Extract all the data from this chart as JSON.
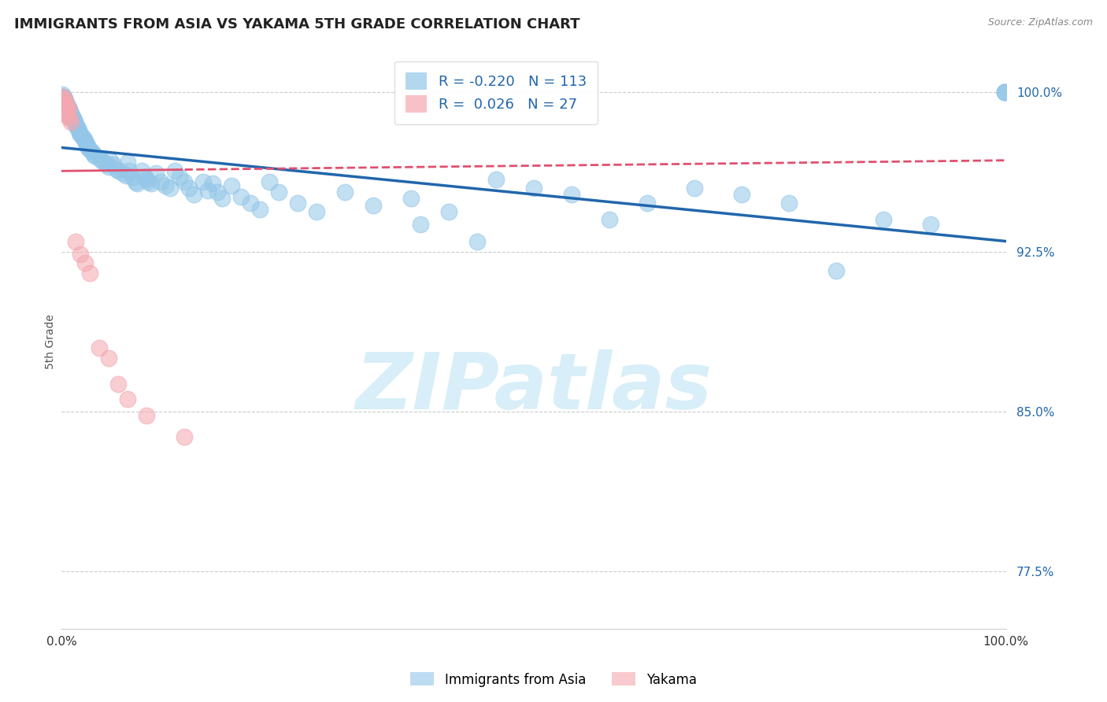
{
  "title": "IMMIGRANTS FROM ASIA VS YAKAMA 5TH GRADE CORRELATION CHART",
  "source_text": "Source: ZipAtlas.com",
  "ylabel": "5th Grade",
  "xlim": [
    0,
    1
  ],
  "ylim": [
    0.748,
    1.018
  ],
  "yticks": [
    0.775,
    0.85,
    0.925,
    1.0
  ],
  "ytick_labels": [
    "77.5%",
    "85.0%",
    "92.5%",
    "100.0%"
  ],
  "legend_blue_R": "-0.220",
  "legend_blue_N": "113",
  "legend_pink_R": "0.026",
  "legend_pink_N": "27",
  "legend_label_blue": "Immigrants from Asia",
  "legend_label_pink": "Yakama",
  "blue_color": "#93c6e8",
  "pink_color": "#f4a7b0",
  "trend_blue_color": "#2166ac",
  "trend_pink_color": "#e05070",
  "background_color": "#ffffff",
  "watermark_text": "ZIPatlas",
  "watermark_color": "#d8eef8",
  "title_fontsize": 13,
  "blue_trend_start_y": 0.974,
  "blue_trend_end_y": 0.93,
  "pink_trend_start_y": 0.963,
  "pink_trend_end_y": 0.968,
  "pink_trend_dashed_start": 0.13,
  "blue_points": [
    [
      0.001,
      0.999
    ],
    [
      0.001,
      0.998
    ],
    [
      0.001,
      0.997
    ],
    [
      0.001,
      0.996
    ],
    [
      0.001,
      0.995
    ],
    [
      0.002,
      0.998
    ],
    [
      0.002,
      0.997
    ],
    [
      0.002,
      0.996
    ],
    [
      0.002,
      0.995
    ],
    [
      0.002,
      0.994
    ],
    [
      0.003,
      0.997
    ],
    [
      0.003,
      0.996
    ],
    [
      0.003,
      0.995
    ],
    [
      0.003,
      0.994
    ],
    [
      0.003,
      0.993
    ],
    [
      0.004,
      0.996
    ],
    [
      0.004,
      0.995
    ],
    [
      0.004,
      0.994
    ],
    [
      0.005,
      0.995
    ],
    [
      0.005,
      0.994
    ],
    [
      0.006,
      0.994
    ],
    [
      0.006,
      0.993
    ],
    [
      0.007,
      0.993
    ],
    [
      0.007,
      0.992
    ],
    [
      0.008,
      0.992
    ],
    [
      0.008,
      0.991
    ],
    [
      0.009,
      0.991
    ],
    [
      0.01,
      0.99
    ],
    [
      0.01,
      0.989
    ],
    [
      0.01,
      0.988
    ],
    [
      0.011,
      0.989
    ],
    [
      0.012,
      0.988
    ],
    [
      0.013,
      0.987
    ],
    [
      0.014,
      0.986
    ],
    [
      0.015,
      0.985
    ],
    [
      0.016,
      0.984
    ],
    [
      0.017,
      0.983
    ],
    [
      0.018,
      0.982
    ],
    [
      0.019,
      0.981
    ],
    [
      0.02,
      0.98
    ],
    [
      0.022,
      0.979
    ],
    [
      0.024,
      0.978
    ],
    [
      0.025,
      0.977
    ],
    [
      0.026,
      0.976
    ],
    [
      0.027,
      0.975
    ],
    [
      0.028,
      0.974
    ],
    [
      0.03,
      0.973
    ],
    [
      0.032,
      0.972
    ],
    [
      0.034,
      0.971
    ],
    [
      0.035,
      0.97
    ],
    [
      0.04,
      0.969
    ],
    [
      0.042,
      0.968
    ],
    [
      0.045,
      0.967
    ],
    [
      0.048,
      0.966
    ],
    [
      0.05,
      0.965
    ],
    [
      0.052,
      0.968
    ],
    [
      0.055,
      0.966
    ],
    [
      0.058,
      0.964
    ],
    [
      0.06,
      0.963
    ],
    [
      0.065,
      0.962
    ],
    [
      0.068,
      0.961
    ],
    [
      0.07,
      0.967
    ],
    [
      0.072,
      0.963
    ],
    [
      0.075,
      0.96
    ],
    [
      0.078,
      0.958
    ],
    [
      0.08,
      0.957
    ],
    [
      0.085,
      0.963
    ],
    [
      0.088,
      0.96
    ],
    [
      0.09,
      0.959
    ],
    [
      0.092,
      0.958
    ],
    [
      0.095,
      0.957
    ],
    [
      0.1,
      0.962
    ],
    [
      0.105,
      0.958
    ],
    [
      0.11,
      0.956
    ],
    [
      0.115,
      0.955
    ],
    [
      0.12,
      0.963
    ],
    [
      0.125,
      0.96
    ],
    [
      0.13,
      0.958
    ],
    [
      0.135,
      0.955
    ],
    [
      0.14,
      0.952
    ],
    [
      0.15,
      0.958
    ],
    [
      0.155,
      0.954
    ],
    [
      0.16,
      0.957
    ],
    [
      0.165,
      0.953
    ],
    [
      0.17,
      0.95
    ],
    [
      0.18,
      0.956
    ],
    [
      0.19,
      0.951
    ],
    [
      0.2,
      0.948
    ],
    [
      0.21,
      0.945
    ],
    [
      0.22,
      0.958
    ],
    [
      0.23,
      0.953
    ],
    [
      0.25,
      0.948
    ],
    [
      0.27,
      0.944
    ],
    [
      0.3,
      0.953
    ],
    [
      0.33,
      0.947
    ],
    [
      0.37,
      0.95
    ],
    [
      0.41,
      0.944
    ],
    [
      0.46,
      0.959
    ],
    [
      0.5,
      0.955
    ],
    [
      0.54,
      0.952
    ],
    [
      0.58,
      0.94
    ],
    [
      0.62,
      0.948
    ],
    [
      0.67,
      0.955
    ],
    [
      0.72,
      0.952
    ],
    [
      0.77,
      0.948
    ],
    [
      0.82,
      0.916
    ],
    [
      0.87,
      0.94
    ],
    [
      0.92,
      0.938
    ],
    [
      0.999,
      1.0
    ],
    [
      0.999,
      1.0
    ],
    [
      0.999,
      1.0
    ],
    [
      0.38,
      0.938
    ],
    [
      0.44,
      0.93
    ]
  ],
  "pink_points": [
    [
      0.001,
      0.998
    ],
    [
      0.002,
      0.997
    ],
    [
      0.002,
      0.995
    ],
    [
      0.002,
      0.993
    ],
    [
      0.003,
      0.996
    ],
    [
      0.003,
      0.994
    ],
    [
      0.003,
      0.992
    ],
    [
      0.004,
      0.995
    ],
    [
      0.004,
      0.993
    ],
    [
      0.004,
      0.99
    ],
    [
      0.005,
      0.994
    ],
    [
      0.005,
      0.991
    ],
    [
      0.006,
      0.993
    ],
    [
      0.006,
      0.989
    ],
    [
      0.007,
      0.992
    ],
    [
      0.008,
      0.988
    ],
    [
      0.01,
      0.986
    ],
    [
      0.015,
      0.93
    ],
    [
      0.02,
      0.924
    ],
    [
      0.025,
      0.92
    ],
    [
      0.03,
      0.915
    ],
    [
      0.04,
      0.88
    ],
    [
      0.05,
      0.875
    ],
    [
      0.06,
      0.863
    ],
    [
      0.07,
      0.856
    ],
    [
      0.09,
      0.848
    ],
    [
      0.13,
      0.838
    ]
  ]
}
